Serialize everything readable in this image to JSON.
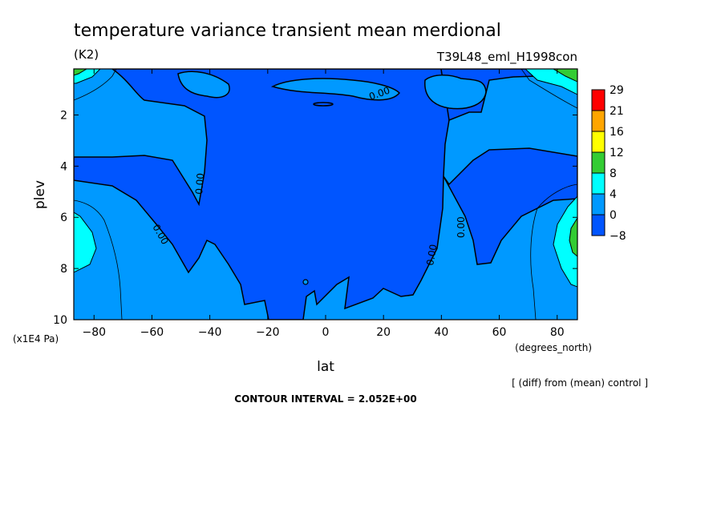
{
  "chart_data": {
    "type": "heatmap",
    "title": "temperature variance transient mean merdional",
    "units": "(K2)",
    "experiment": "T39L48_eml_H1998con",
    "xlabel": "lat",
    "x_units": "(degrees_north)",
    "ylabel": "plev",
    "y_units": "(x1E4 Pa)",
    "xlim": [
      -87,
      87
    ],
    "ylim": [
      10,
      0.2
    ],
    "x_ticks": [
      -80,
      -60,
      -40,
      -20,
      0,
      20,
      40,
      60,
      80
    ],
    "y_ticks": [
      2,
      4,
      6,
      8,
      10
    ],
    "contour_interval_text": "CONTOUR INTERVAL = 2.052E+00",
    "note": "[ (diff) from (mean) control ]",
    "contour_labels": [
      "0.00",
      "0.00",
      "0.00",
      "0.00",
      "0.00"
    ],
    "colorbar": {
      "levels": [
        "29",
        "21",
        "16",
        "12",
        "8",
        "4",
        "0",
        "-8"
      ],
      "colors": [
        "#ff0000",
        "#ffa500",
        "#ffff00",
        "#33cc33",
        "#00ffff",
        "#0099ff",
        "#0055ff"
      ]
    },
    "grid": false
  }
}
